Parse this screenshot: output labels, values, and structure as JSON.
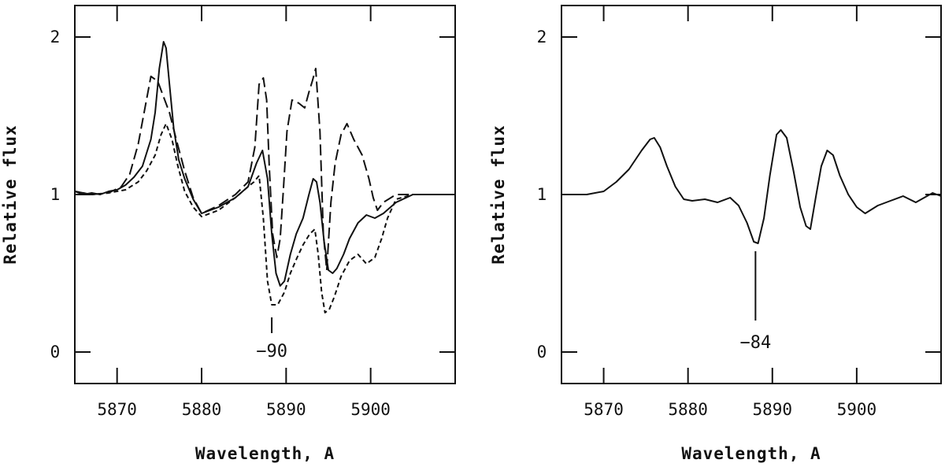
{
  "chart_data": [
    {
      "type": "line",
      "xlabel": "Wavelength, A",
      "ylabel": "Relative flux",
      "xlim": [
        5865,
        5910
      ],
      "ylim": [
        -0.2,
        2.2
      ],
      "xticks": [
        5870,
        5880,
        5890,
        5900
      ],
      "yticks": [
        0,
        1,
        2
      ],
      "annotations": [
        {
          "text": "−90",
          "x": 5888.3,
          "y": 0.12
        }
      ],
      "series": [
        {
          "style": "solid",
          "x": [
            5865,
            5866,
            5867,
            5868,
            5869,
            5870,
            5871,
            5872,
            5873,
            5874,
            5874.5,
            5875,
            5875.5,
            5875.8,
            5876.2,
            5876.7,
            5877.3,
            5878,
            5879,
            5880,
            5882,
            5884,
            5885.5,
            5886.5,
            5887.2,
            5887.8,
            5888.3,
            5888.8,
            5889.3,
            5889.8,
            5890.5,
            5891.2,
            5892,
            5892.7,
            5893.2,
            5893.6,
            5894,
            5894.5,
            5895,
            5895.5,
            5896,
            5896.8,
            5897.5,
            5898.5,
            5899.5,
            5900.5,
            5901.5,
            5903,
            5905,
            5907,
            5910
          ],
          "y": [
            1.02,
            1.0,
            1.01,
            1.0,
            1.02,
            1.03,
            1.06,
            1.11,
            1.18,
            1.35,
            1.52,
            1.8,
            1.97,
            1.93,
            1.7,
            1.42,
            1.22,
            1.1,
            0.97,
            0.88,
            0.92,
            0.98,
            1.05,
            1.2,
            1.28,
            1.1,
            0.75,
            0.5,
            0.42,
            0.45,
            0.62,
            0.75,
            0.85,
            1.0,
            1.1,
            1.08,
            0.95,
            0.7,
            0.52,
            0.5,
            0.53,
            0.62,
            0.72,
            0.82,
            0.87,
            0.85,
            0.88,
            0.95,
            1.0,
            1.0,
            1.0
          ]
        },
        {
          "style": "long-dash",
          "x": [
            5865,
            5867,
            5869,
            5870.5,
            5871.5,
            5872.5,
            5873.3,
            5874,
            5874.8,
            5875.5,
            5876.2,
            5877,
            5878,
            5879,
            5880,
            5882,
            5884,
            5885.5,
            5886.3,
            5886.8,
            5887.3,
            5887.7,
            5888,
            5888.4,
            5888.9,
            5889.3,
            5889.7,
            5890.1,
            5890.7,
            5891.5,
            5892.2,
            5892.7,
            5893.1,
            5893.5,
            5894,
            5894.4,
            5894.8,
            5895.3,
            5895.8,
            5896.5,
            5897.2,
            5898,
            5899,
            5899.8,
            5900.3,
            5900.8,
            5901.5,
            5903,
            5905,
            5907,
            5910
          ],
          "y": [
            1.02,
            1.0,
            1.01,
            1.05,
            1.13,
            1.32,
            1.55,
            1.75,
            1.72,
            1.62,
            1.52,
            1.35,
            1.15,
            0.98,
            0.88,
            0.93,
            1.0,
            1.08,
            1.3,
            1.7,
            1.74,
            1.6,
            1.18,
            0.75,
            0.6,
            0.72,
            1.05,
            1.4,
            1.6,
            1.58,
            1.55,
            1.65,
            1.72,
            1.8,
            1.4,
            0.75,
            0.52,
            0.95,
            1.2,
            1.38,
            1.45,
            1.35,
            1.25,
            1.1,
            0.98,
            0.9,
            0.95,
            1.0,
            1.0,
            1.0,
            1.0
          ]
        },
        {
          "style": "short-dash",
          "x": [
            5865,
            5867,
            5869,
            5871,
            5872.5,
            5873.5,
            5874.5,
            5875.2,
            5875.8,
            5876.5,
            5877.2,
            5878,
            5879,
            5880,
            5882,
            5884,
            5885.5,
            5886.2,
            5886.8,
            5887.3,
            5887.8,
            5888.3,
            5889,
            5889.8,
            5890.5,
            5891.3,
            5892,
            5892.8,
            5893.4,
            5893.8,
            5894.2,
            5894.6,
            5895.1,
            5895.7,
            5896.5,
            5897.5,
            5898.5,
            5899.5,
            5900.5,
            5901.3,
            5902,
            5903,
            5905,
            5907,
            5910
          ],
          "y": [
            1.02,
            1.0,
            1.01,
            1.03,
            1.08,
            1.15,
            1.25,
            1.38,
            1.45,
            1.35,
            1.18,
            1.02,
            0.92,
            0.86,
            0.9,
            0.98,
            1.05,
            1.08,
            1.12,
            0.85,
            0.45,
            0.3,
            0.3,
            0.38,
            0.5,
            0.6,
            0.68,
            0.75,
            0.78,
            0.62,
            0.38,
            0.25,
            0.27,
            0.35,
            0.48,
            0.58,
            0.62,
            0.56,
            0.6,
            0.72,
            0.85,
            0.97,
            1.0,
            1.0,
            1.0
          ]
        }
      ]
    },
    {
      "type": "line",
      "xlabel": "Wavelength, A",
      "ylabel": "Relative flux",
      "xlim": [
        5865,
        5910
      ],
      "ylim": [
        -0.2,
        2.2
      ],
      "xticks": [
        5870,
        5880,
        5890,
        5900
      ],
      "yticks": [
        0,
        1,
        2
      ],
      "annotations": [
        {
          "text": "−84",
          "x": 5888.0,
          "y": 0.2
        }
      ],
      "series": [
        {
          "style": "solid",
          "x": [
            5865,
            5866,
            5868,
            5870,
            5871.5,
            5873,
            5874.5,
            5875.5,
            5876,
            5876.7,
            5877.5,
            5878.5,
            5879.5,
            5880.5,
            5882,
            5883.5,
            5885,
            5886,
            5887,
            5887.8,
            5888.3,
            5889,
            5889.7,
            5890.5,
            5891,
            5891.7,
            5892.5,
            5893.3,
            5894,
            5894.5,
            5895.2,
            5895.8,
            5896.5,
            5897.2,
            5898,
            5899,
            5900,
            5901,
            5902.5,
            5904,
            5905.5,
            5907,
            5908,
            5909,
            5910
          ],
          "y": [
            1.0,
            1.0,
            1.0,
            1.02,
            1.08,
            1.16,
            1.28,
            1.35,
            1.36,
            1.3,
            1.18,
            1.05,
            0.97,
            0.96,
            0.97,
            0.95,
            0.98,
            0.93,
            0.82,
            0.7,
            0.69,
            0.85,
            1.12,
            1.38,
            1.41,
            1.36,
            1.15,
            0.92,
            0.8,
            0.78,
            1.0,
            1.18,
            1.28,
            1.25,
            1.12,
            1.0,
            0.92,
            0.88,
            0.93,
            0.96,
            0.99,
            0.95,
            0.98,
            1.01,
            0.99
          ]
        }
      ]
    }
  ]
}
